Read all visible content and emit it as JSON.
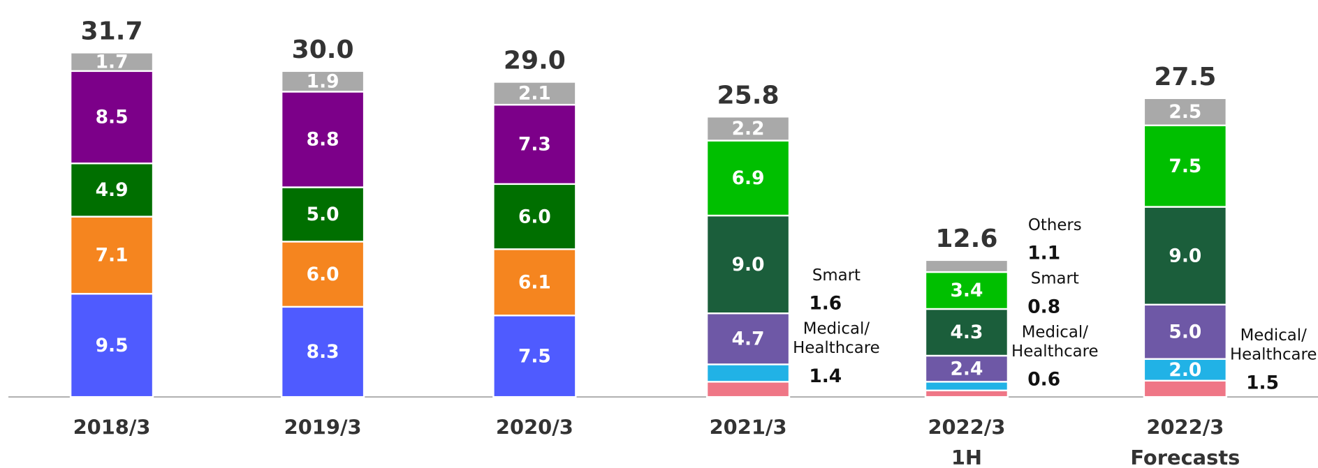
{
  "chart_data": {
    "type": "stacked_bar",
    "categories": [
      [
        "2018/3"
      ],
      [
        "2019/3"
      ],
      [
        "2020/3"
      ],
      [
        "2021/3"
      ],
      [
        "2022/3",
        "1H"
      ],
      [
        "2022/3",
        "Forecasts"
      ]
    ],
    "totals": [
      31.7,
      30.0,
      29.0,
      25.8,
      12.6,
      27.5
    ],
    "total_labels": [
      "31.7",
      "30.0",
      "29.0",
      "25.8",
      "12.6",
      "27.5"
    ],
    "ylim": [
      0,
      35
    ],
    "series": [
      {
        "color": "#4f5bff",
        "values": [
          9.5,
          8.3,
          7.5,
          null,
          null,
          null
        ],
        "value_labels": [
          "9.5",
          "8.3",
          "7.5",
          null,
          null,
          null
        ]
      },
      {
        "color": "#f5851f",
        "values": [
          7.1,
          6.0,
          6.1,
          null,
          null,
          null
        ],
        "value_labels": [
          "7.1",
          "6.0",
          "6.1",
          null,
          null,
          null
        ]
      },
      {
        "color": "#006f00",
        "values": [
          4.9,
          5.0,
          6.0,
          null,
          null,
          null
        ],
        "value_labels": [
          "4.9",
          "5.0",
          "6.0",
          null,
          null,
          null
        ]
      },
      {
        "color": "#7c0089",
        "values": [
          8.5,
          8.8,
          7.3,
          null,
          null,
          null
        ],
        "value_labels": [
          "8.5",
          "8.8",
          "7.3",
          null,
          null,
          null
        ]
      },
      {
        "color": "#ef7686",
        "values": [
          null,
          null,
          null,
          1.4,
          0.6,
          1.5
        ],
        "value_labels": [
          null,
          null,
          null,
          "1.4",
          "0.6",
          "1.5"
        ],
        "callouts": [
          null,
          null,
          null,
          [
            "Medical/",
            "Healthcare"
          ],
          [
            "Medical/",
            "Healthcare"
          ],
          [
            "Medical/",
            "Healthcare"
          ]
        ]
      },
      {
        "color": "#21b2e6",
        "values": [
          null,
          null,
          null,
          1.6,
          0.8,
          2.0
        ],
        "value_labels": [
          null,
          null,
          null,
          "1.6",
          "0.8",
          "2.0"
        ],
        "callouts": [
          null,
          null,
          null,
          [
            "Smart"
          ],
          [
            "Smart"
          ],
          null
        ]
      },
      {
        "color": "#6e58a6",
        "values": [
          null,
          null,
          null,
          4.7,
          2.4,
          5.0
        ],
        "value_labels": [
          null,
          null,
          null,
          "4.7",
          "2.4",
          "5.0"
        ]
      },
      {
        "color": "#1b5e3b",
        "values": [
          null,
          null,
          null,
          9.0,
          4.3,
          9.0
        ],
        "value_labels": [
          null,
          null,
          null,
          "9.0",
          "4.3",
          "9.0"
        ]
      },
      {
        "color": "#00bf00",
        "values": [
          null,
          null,
          null,
          6.9,
          3.4,
          7.5
        ],
        "value_labels": [
          null,
          null,
          null,
          "6.9",
          "3.4",
          "7.5"
        ]
      },
      {
        "color": "#a9a9a9",
        "values": [
          1.7,
          1.9,
          2.1,
          2.2,
          1.1,
          2.5
        ],
        "value_labels": [
          "1.7",
          "1.9",
          "2.1",
          "2.2",
          "1.1",
          "2.5"
        ],
        "callouts": [
          null,
          null,
          null,
          null,
          [
            "Others"
          ],
          null
        ]
      }
    ]
  }
}
